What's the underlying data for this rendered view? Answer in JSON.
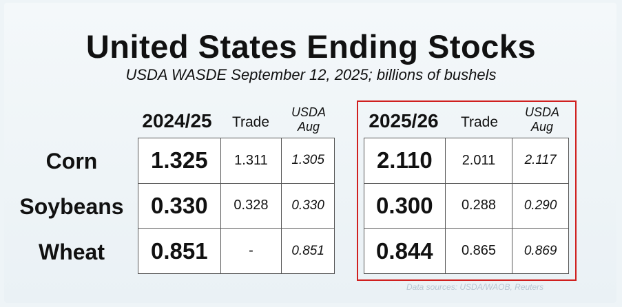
{
  "chart_data": {
    "type": "table",
    "title": "United States Ending Stocks",
    "subtitle": "USDA WASDE September 12, 2025; billions of bushels",
    "source": "Data sources: USDA/WAOB, Reuters",
    "highlight_color": "#d0201f",
    "groups": [
      {
        "year": "2024/25",
        "trade_label": "Trade",
        "usda_label_1": "USDA",
        "usda_label_2": "Aug",
        "highlighted": false,
        "rows": [
          {
            "value": "1.325",
            "trade": "1.311",
            "usda_aug": "1.305"
          },
          {
            "value": "0.330",
            "trade": "0.328",
            "usda_aug": "0.330"
          },
          {
            "value": "0.851",
            "trade": "-",
            "usda_aug": "0.851"
          }
        ]
      },
      {
        "year": "2025/26",
        "trade_label": "Trade",
        "usda_label_1": "USDA",
        "usda_label_2": "Aug",
        "highlighted": true,
        "rows": [
          {
            "value": "2.110",
            "trade": "2.011",
            "usda_aug": "2.117"
          },
          {
            "value": "0.300",
            "trade": "0.288",
            "usda_aug": "0.290"
          },
          {
            "value": "0.844",
            "trade": "0.865",
            "usda_aug": "0.869"
          }
        ]
      }
    ],
    "commodities": [
      "Corn",
      "Soybeans",
      "Wheat"
    ]
  }
}
